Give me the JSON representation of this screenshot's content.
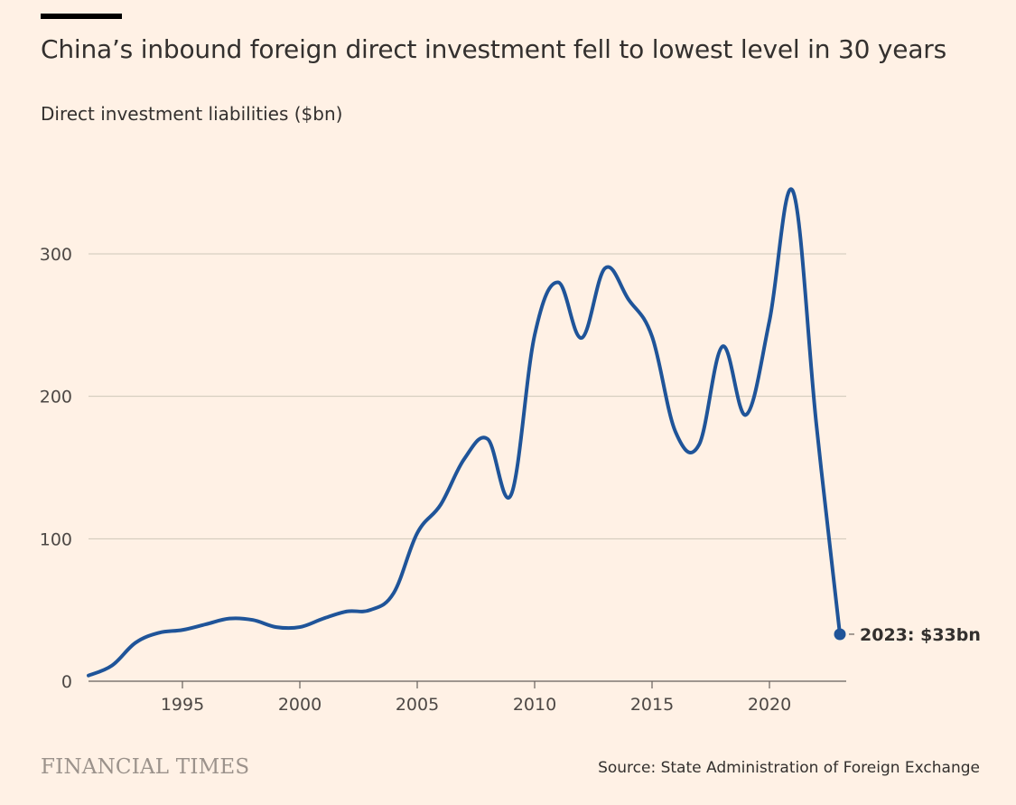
{
  "header": {
    "title": "China’s inbound foreign direct investment fell to lowest level in 30 years",
    "subtitle": "Direct investment liabilities ($bn)"
  },
  "footer": {
    "brand": "FINANCIAL TIMES",
    "source": "Source: State Administration of Foreign Exchange"
  },
  "colors": {
    "background": "#fff1e5",
    "line": "#1f5499",
    "grid": "#cec6b9"
  },
  "chart_data": {
    "type": "line",
    "title": "China’s inbound foreign direct investment fell to lowest level in 30 years",
    "ylabel": "Direct investment liabilities ($bn)",
    "xlabel": "",
    "x": [
      1991,
      1992,
      1993,
      1994,
      1995,
      1996,
      1997,
      1998,
      1999,
      2000,
      2001,
      2002,
      2003,
      2004,
      2005,
      2006,
      2007,
      2008,
      2009,
      2010,
      2011,
      2012,
      2013,
      2014,
      2015,
      2016,
      2017,
      2018,
      2019,
      2020,
      2021,
      2022,
      2023
    ],
    "series": [
      {
        "values": [
          4,
          11,
          27,
          34,
          36,
          40,
          44,
          43,
          38,
          38,
          44,
          49,
          50,
          62,
          104,
          124,
          156,
          170,
          131,
          243,
          280,
          241,
          290,
          268,
          242,
          175,
          166,
          235,
          187,
          253,
          344,
          180,
          33
        ]
      }
    ],
    "xticks": [
      1995,
      2000,
      2005,
      2010,
      2015,
      2020
    ],
    "yticks": [
      0,
      100,
      200,
      300
    ],
    "xlim": [
      1991,
      2023
    ],
    "ylim": [
      0,
      350
    ],
    "grid": true,
    "annotation": {
      "x": 2023,
      "y": 33,
      "label": "2023: $33bn"
    }
  }
}
